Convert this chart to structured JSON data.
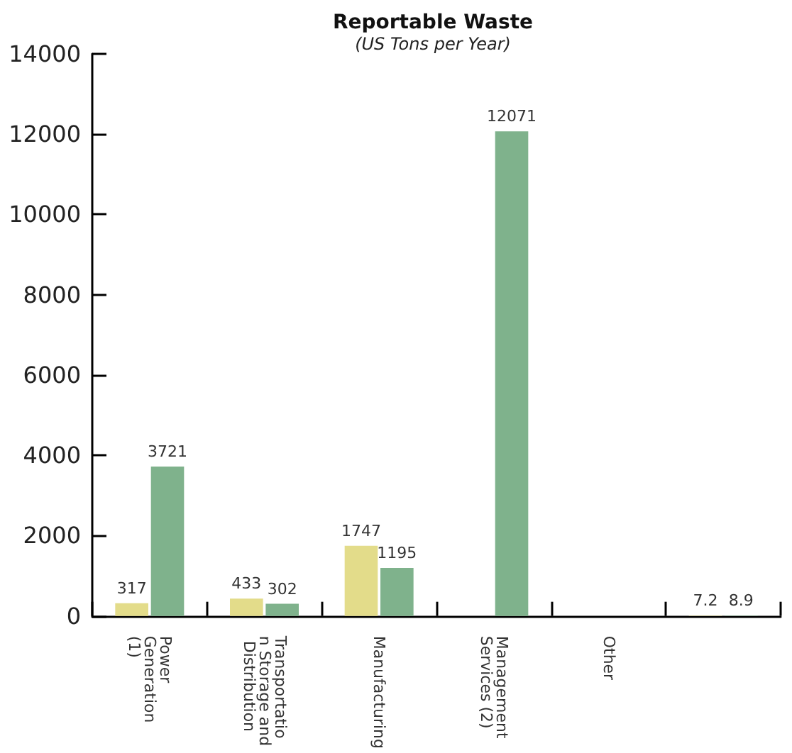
{
  "chart_data": {
    "type": "bar",
    "title": "Reportable Waste",
    "subtitle": "(US Tons per Year)",
    "categories": [
      "Power Generation (1)",
      "Transportation Storage and Distribution",
      "Manufacturing",
      "Management Services (2)",
      "Other",
      null
    ],
    "series": [
      {
        "color": "#e3dc8a",
        "values": [
          317,
          433,
          1747,
          0,
          0,
          7.2
        ],
        "value_labels": [
          "317",
          "433",
          "1747",
          null,
          null,
          "7.2"
        ]
      },
      {
        "color": "#7fb28c",
        "values": [
          3721,
          302,
          1195,
          12071,
          0,
          8.9
        ],
        "value_labels": [
          "3721",
          "302",
          "1195",
          "12071",
          null,
          "8.9"
        ]
      }
    ],
    "ylim": [
      0,
      14000
    ],
    "yticks": [
      0,
      2000,
      4000,
      6000,
      8000,
      10000,
      12000,
      14000
    ],
    "grid": false
  }
}
